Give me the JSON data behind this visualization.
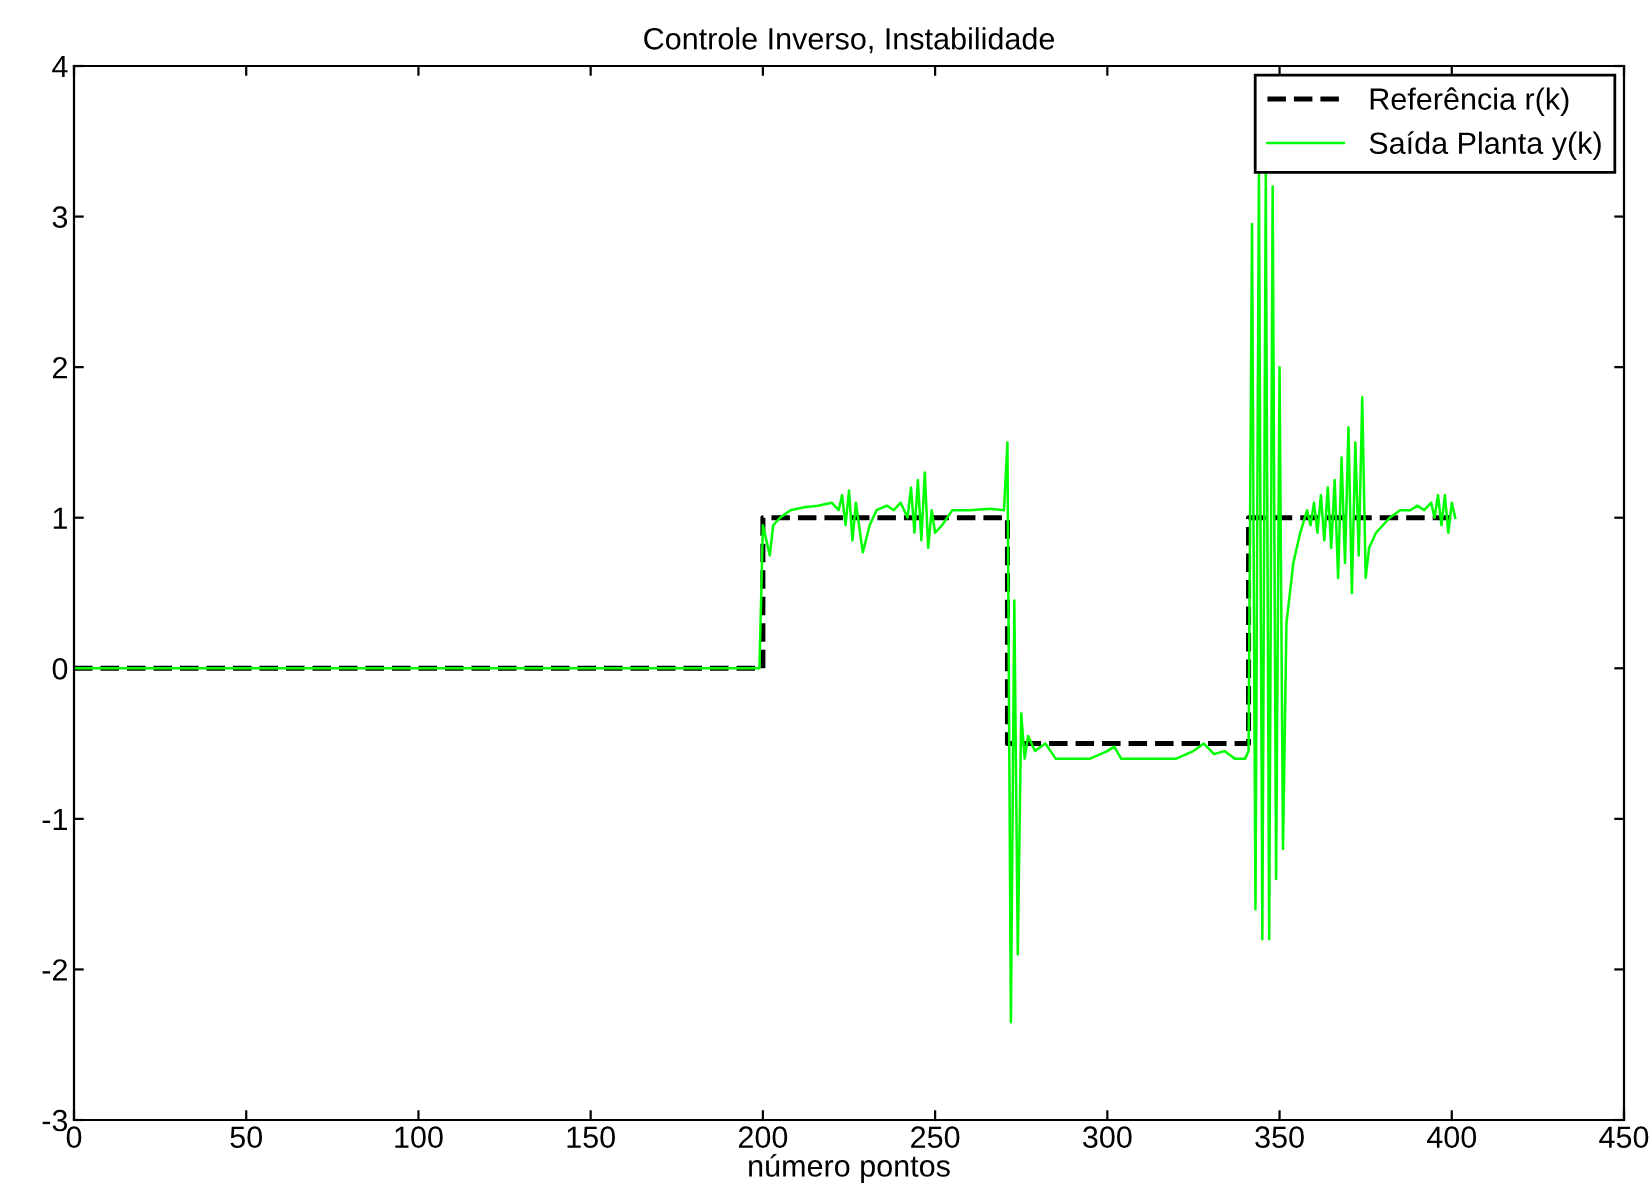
{
  "chart_data": {
    "type": "line",
    "title": "Controle Inverso, Instabilidade",
    "xlabel": "número pontos",
    "xlim": [
      0,
      450
    ],
    "xticks": [
      0,
      50,
      100,
      150,
      200,
      250,
      300,
      350,
      400,
      450
    ],
    "ylim": [
      -3,
      4
    ],
    "yticks": [
      -3,
      -2,
      -1,
      0,
      1,
      2,
      3,
      4
    ],
    "grid": false,
    "legend": "top right",
    "marker": "none",
    "series": [
      {
        "name": "Referência r(k)",
        "color": "#000000",
        "line_style": "dashed",
        "x": [
          0,
          200,
          200,
          271,
          271,
          341,
          341,
          401
        ],
        "values": [
          0,
          0,
          1,
          1,
          -0.5,
          -0.5,
          1,
          1
        ]
      },
      {
        "name": "Saída Planta y(k)",
        "color": "#00ff00",
        "line_style": "solid",
        "x": [
          0,
          199,
          200,
          201,
          202,
          203,
          205,
          208,
          212,
          216,
          220,
          222,
          223,
          224,
          225,
          226,
          227,
          229,
          231,
          233,
          236,
          238,
          240,
          242,
          243,
          244,
          245,
          246,
          247,
          248,
          249,
          250,
          252,
          255,
          260,
          266,
          270,
          271,
          272,
          273,
          274,
          275,
          276,
          277,
          279,
          282,
          285,
          295,
          300,
          302,
          304,
          310,
          320,
          325,
          328,
          331,
          334,
          337,
          340,
          341,
          342,
          343,
          344,
          345,
          346,
          347,
          348,
          349,
          350,
          351,
          352,
          354,
          356,
          358,
          359,
          360,
          361,
          362,
          363,
          364,
          365,
          366,
          367,
          368,
          369,
          370,
          371,
          372,
          373,
          374,
          375,
          376,
          378,
          380,
          382,
          385,
          388,
          390,
          392,
          394,
          395,
          396,
          397,
          398,
          399,
          400,
          401
        ],
        "values": [
          0,
          0,
          0.95,
          0.85,
          0.75,
          0.95,
          1.0,
          1.05,
          1.07,
          1.08,
          1.1,
          1.05,
          1.15,
          0.95,
          1.18,
          0.85,
          1.1,
          0.77,
          0.95,
          1.05,
          1.08,
          1.05,
          1.1,
          1.0,
          1.2,
          0.9,
          1.25,
          0.85,
          1.3,
          0.8,
          1.05,
          0.9,
          0.95,
          1.05,
          1.05,
          1.06,
          1.05,
          1.5,
          -2.35,
          0.45,
          -1.9,
          -0.3,
          -0.6,
          -0.45,
          -0.55,
          -0.5,
          -0.6,
          -0.6,
          -0.55,
          -0.52,
          -0.6,
          -0.6,
          -0.6,
          -0.55,
          -0.5,
          -0.57,
          -0.55,
          -0.6,
          -0.6,
          -0.55,
          2.95,
          -1.6,
          3.3,
          -1.8,
          3.3,
          -1.8,
          3.2,
          -1.4,
          2.0,
          -1.2,
          0.3,
          0.7,
          0.9,
          1.05,
          0.95,
          1.1,
          0.9,
          1.15,
          0.85,
          1.2,
          0.8,
          1.25,
          0.6,
          1.4,
          0.7,
          1.6,
          0.5,
          1.5,
          0.75,
          1.8,
          0.6,
          0.8,
          0.9,
          0.95,
          1.0,
          1.05,
          1.05,
          1.08,
          1.05,
          1.1,
          1.0,
          1.15,
          0.95,
          1.15,
          0.9,
          1.1,
          1.0
        ]
      }
    ]
  }
}
